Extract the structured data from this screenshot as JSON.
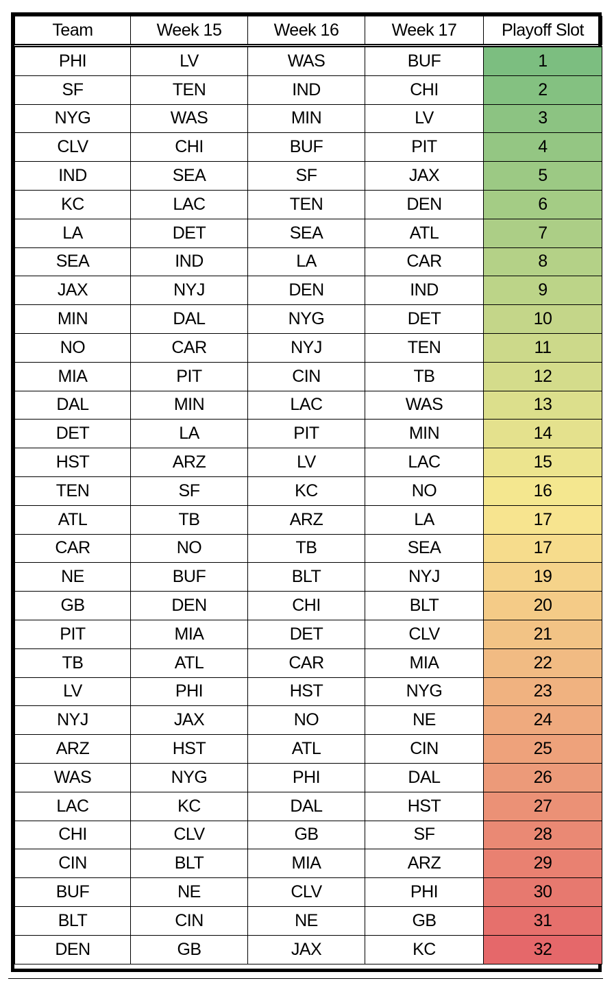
{
  "table": {
    "header": [
      "Team",
      "Week 15",
      "Week 16",
      "Week 17",
      "Playoff Slot"
    ],
    "rows": [
      [
        "PHI",
        "LV",
        "WAS",
        "BUF",
        1
      ],
      [
        "SF",
        "TEN",
        "IND",
        "CHI",
        2
      ],
      [
        "NYG",
        "WAS",
        "MIN",
        "LV",
        3
      ],
      [
        "CLV",
        "CHI",
        "BUF",
        "PIT",
        4
      ],
      [
        "IND",
        "SEA",
        "SF",
        "JAX",
        5
      ],
      [
        "KC",
        "LAC",
        "TEN",
        "DEN",
        6
      ],
      [
        "LA",
        "DET",
        "SEA",
        "ATL",
        7
      ],
      [
        "SEA",
        "IND",
        "LA",
        "CAR",
        8
      ],
      [
        "JAX",
        "NYJ",
        "DEN",
        "IND",
        9
      ],
      [
        "MIN",
        "DAL",
        "NYG",
        "DET",
        10
      ],
      [
        "NO",
        "CAR",
        "NYJ",
        "TEN",
        11
      ],
      [
        "MIA",
        "PIT",
        "CIN",
        "TB",
        12
      ],
      [
        "DAL",
        "MIN",
        "LAC",
        "WAS",
        13
      ],
      [
        "DET",
        "LA",
        "PIT",
        "MIN",
        14
      ],
      [
        "HST",
        "ARZ",
        "LV",
        "LAC",
        15
      ],
      [
        "TEN",
        "SF",
        "KC",
        "NO",
        16
      ],
      [
        "ATL",
        "TB",
        "ARZ",
        "LA",
        17
      ],
      [
        "CAR",
        "NO",
        "TB",
        "SEA",
        17
      ],
      [
        "NE",
        "BUF",
        "BLT",
        "NYJ",
        19
      ],
      [
        "GB",
        "DEN",
        "CHI",
        "BLT",
        20
      ],
      [
        "PIT",
        "MIA",
        "DET",
        "CLV",
        21
      ],
      [
        "TB",
        "ATL",
        "CAR",
        "MIA",
        22
      ],
      [
        "LV",
        "PHI",
        "HST",
        "NYG",
        23
      ],
      [
        "NYJ",
        "JAX",
        "NO",
        "NE",
        24
      ],
      [
        "ARZ",
        "HST",
        "ATL",
        "CIN",
        25
      ],
      [
        "WAS",
        "NYG",
        "PHI",
        "DAL",
        26
      ],
      [
        "LAC",
        "KC",
        "DAL",
        "HST",
        27
      ],
      [
        "CHI",
        "CLV",
        "GB",
        "SF",
        28
      ],
      [
        "CIN",
        "BLT",
        "MIA",
        "ARZ",
        29
      ],
      [
        "BUF",
        "NE",
        "CLV",
        "PHI",
        30
      ],
      [
        "BLT",
        "CIN",
        "NE",
        "GB",
        31
      ],
      [
        "DEN",
        "GB",
        "JAX",
        "KC",
        32
      ]
    ]
  }
}
